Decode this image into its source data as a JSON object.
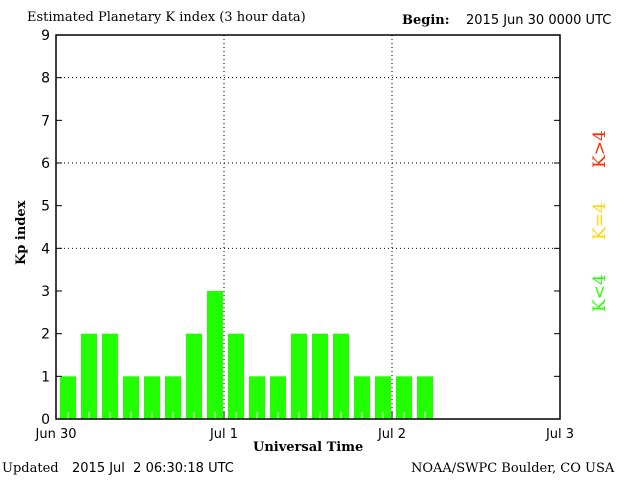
{
  "header": {
    "title": "Estimated Planetary K index (3 hour data)",
    "begin_label": "Begin:",
    "begin_value": "2015 Jun 30 0000 UTC"
  },
  "footer": {
    "updated_label": "Updated",
    "updated_value": "2015 Jul  2 06:30:18 UTC",
    "source": "NOAA/SWPC Boulder, CO USA"
  },
  "legend": [
    {
      "label": "K<4",
      "color": "#22ff00"
    },
    {
      "label": "K=4",
      "color": "#ffd700"
    },
    {
      "label": "K>4",
      "color": "#ff2a00"
    }
  ],
  "chart_data": {
    "type": "bar",
    "title": "Estimated Planetary K index (3 hour data)",
    "xlabel": "Universal Time",
    "ylabel": "Kp index",
    "ylim": [
      0,
      9
    ],
    "yticks": [
      "0",
      "1",
      "2",
      "3",
      "4",
      "5",
      "6",
      "7",
      "8",
      "9"
    ],
    "ygrid": [
      4,
      6,
      8
    ],
    "xticks": [
      {
        "label": "Jun 30",
        "day": 0
      },
      {
        "label": "Jul 1",
        "day": 1
      },
      {
        "label": "Jul 2",
        "day": 2
      },
      {
        "label": "Jul 3",
        "day": 3
      }
    ],
    "xgrid_days": [
      1,
      2
    ],
    "interval_hours": 3,
    "values": [
      1,
      2,
      2,
      1,
      1,
      1,
      2,
      3,
      2,
      1,
      1,
      2,
      2,
      2,
      1,
      1,
      1,
      1
    ],
    "bar_color": "#22ff00"
  }
}
